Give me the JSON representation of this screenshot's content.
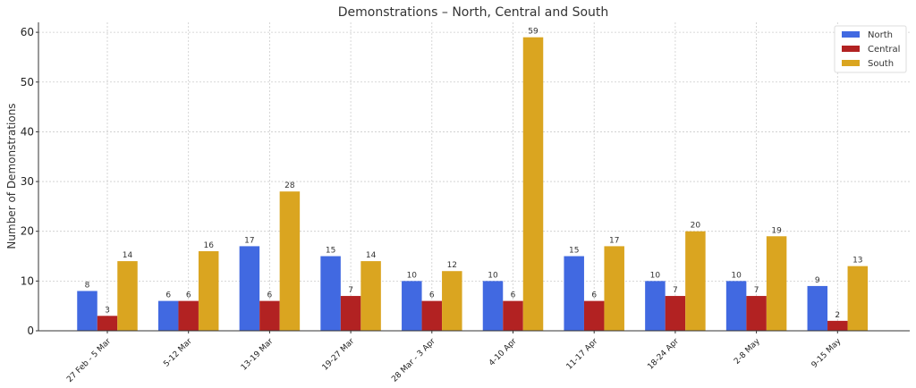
{
  "chart_data": {
    "type": "bar",
    "title": "Demonstrations – North, Central and South",
    "xlabel": "",
    "ylabel": "Number of Demonstrations",
    "ylim": [
      0,
      62
    ],
    "yticks": [
      0,
      10,
      20,
      30,
      40,
      50,
      60
    ],
    "grid": true,
    "legend_position": "top-right",
    "categories": [
      "27 Feb - 5 Mar",
      "5-12 Mar",
      "13-19 Mar",
      "19-27 Mar",
      "28 Mar - 3 Apr",
      "4-10 Apr",
      "11-17 Apr",
      "18-24 Apr",
      "2-8 May",
      "9-15 May"
    ],
    "series": [
      {
        "name": "North",
        "color": "#4169E1",
        "values": [
          8,
          6,
          17,
          15,
          10,
          10,
          15,
          10,
          10,
          9
        ]
      },
      {
        "name": "Central",
        "color": "#B22222",
        "values": [
          3,
          6,
          6,
          7,
          6,
          6,
          6,
          7,
          7,
          2
        ]
      },
      {
        "name": "South",
        "color": "#DAA520",
        "values": [
          14,
          16,
          28,
          14,
          12,
          59,
          17,
          20,
          19,
          13
        ]
      }
    ]
  }
}
